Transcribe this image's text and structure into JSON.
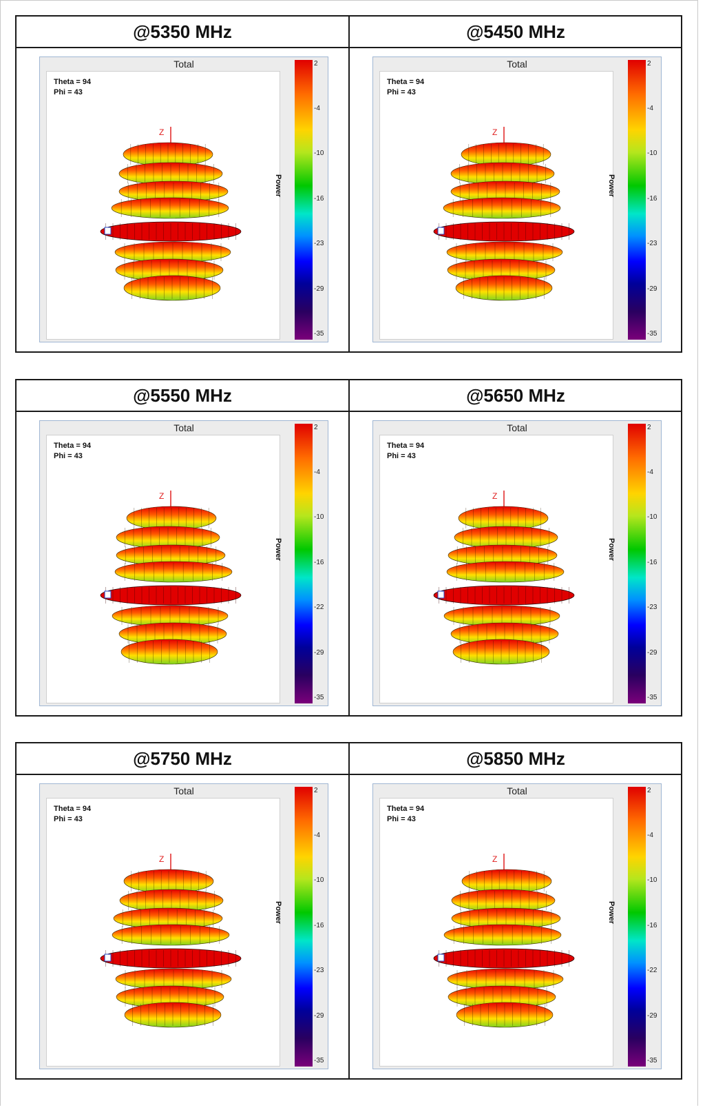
{
  "chart_data": [
    {
      "type": "other",
      "title": "@5350 MHz",
      "panel_title": "Total",
      "theta_label": "Theta = 94",
      "phi_label": "Phi = 43",
      "axis_label": "Z",
      "colorbar_label": "Power",
      "colorbar_ticks": [
        "2",
        "-4",
        "-10",
        "-16",
        "-23",
        "-29",
        "-35"
      ]
    },
    {
      "type": "other",
      "title": "@5450 MHz",
      "panel_title": "Total",
      "theta_label": "Theta = 94",
      "phi_label": "Phi = 43",
      "axis_label": "Z",
      "colorbar_label": "Power",
      "colorbar_ticks": [
        "2",
        "-4",
        "-10",
        "-16",
        "-23",
        "-29",
        "-35"
      ]
    },
    {
      "type": "other",
      "title": "@5550 MHz",
      "panel_title": "Total",
      "theta_label": "Theta = 94",
      "phi_label": "Phi = 43",
      "axis_label": "Z",
      "colorbar_label": "Power",
      "colorbar_ticks": [
        "2",
        "-4",
        "-10",
        "-16",
        "-22",
        "-29",
        "-35"
      ]
    },
    {
      "type": "other",
      "title": "@5650 MHz",
      "panel_title": "Total",
      "theta_label": "Theta = 94",
      "phi_label": "Phi = 43",
      "axis_label": "Z",
      "colorbar_label": "Power",
      "colorbar_ticks": [
        "2",
        "-4",
        "-10",
        "-16",
        "-23",
        "-29",
        "-35"
      ]
    },
    {
      "type": "other",
      "title": "@5750 MHz",
      "panel_title": "Total",
      "theta_label": "Theta = 94",
      "phi_label": "Phi = 43",
      "axis_label": "Z",
      "colorbar_label": "Power",
      "colorbar_ticks": [
        "2",
        "-4",
        "-10",
        "-16",
        "-23",
        "-29",
        "-35"
      ]
    },
    {
      "type": "other",
      "title": "@5850 MHz",
      "panel_title": "Total",
      "theta_label": "Theta = 94",
      "phi_label": "Phi = 43",
      "axis_label": "Z",
      "colorbar_label": "Power",
      "colorbar_ticks": [
        "2",
        "-4",
        "-10",
        "-16",
        "-22",
        "-29",
        "-35"
      ]
    }
  ]
}
